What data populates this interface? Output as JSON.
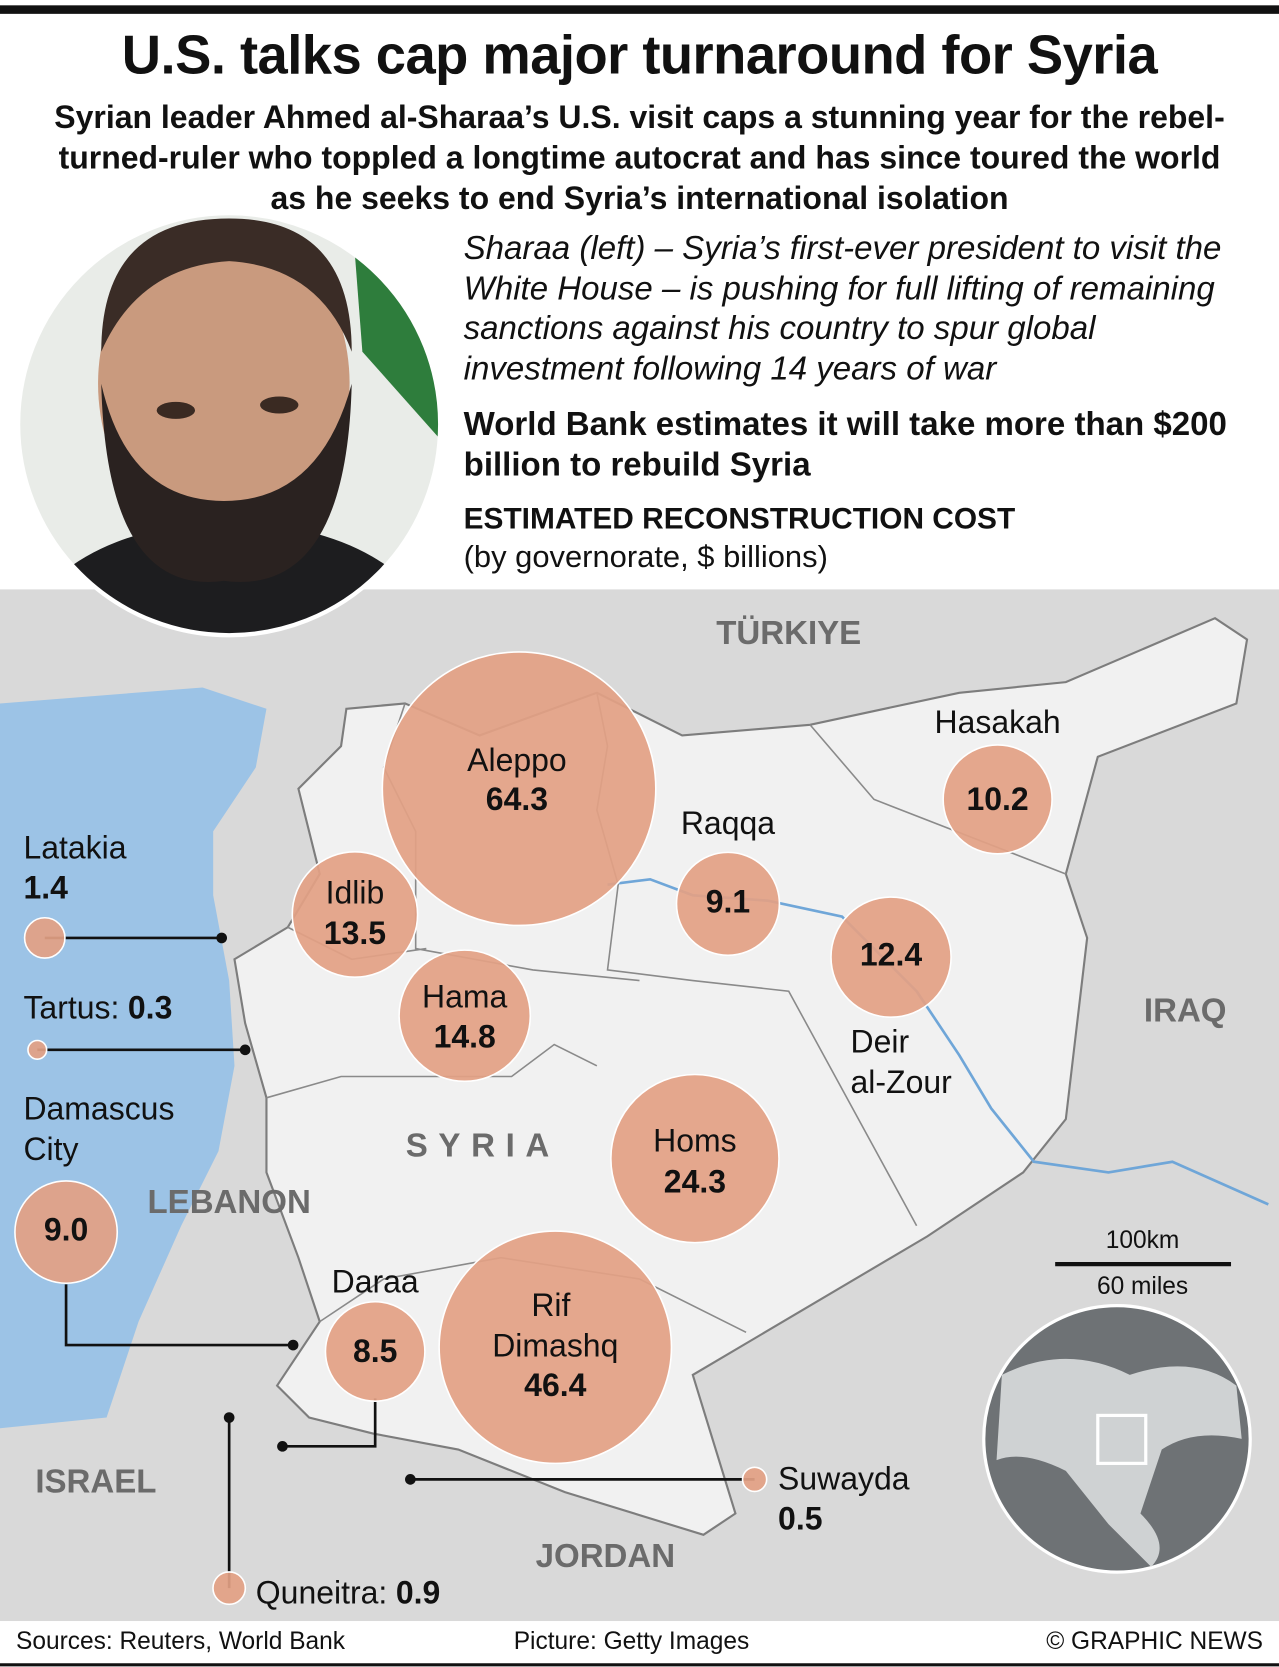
{
  "header": {
    "title": "U.S. talks cap major turnaround for Syria",
    "subtitle": "Syrian leader Ahmed al-Sharaa’s U.S. visit caps a stunning year for the rebel-turned-ruler who toppled a longtime autocrat and has since toured the world as he seeks to end Syria’s international isolation",
    "caption": "Sharaa (left) – Syria’s first-ever president to visit the White House – is pushing for full lifting of remaining sanctions against his country to spur global investment following 14 years of war",
    "highlight": "World Bank estimates it will take more than $200 billion to rebuild Syria",
    "chart_title": "ESTIMATED RECONSTRUCTION COST",
    "chart_subtitle": "(by governorate, $ billions)"
  },
  "map": {
    "type": "proportional-symbol",
    "color": "#e3a184",
    "regions": [
      "Aleppo",
      "Idlib",
      "Hama",
      "Raqqa",
      "Hasakah",
      "Deir al-Zour",
      "Homs",
      "Rif Dimashq",
      "Daraa",
      "Damascus City",
      "Latakia",
      "Tartus:",
      "Quneitra:",
      "Suwayda"
    ],
    "values": [
      64.3,
      13.5,
      14.8,
      9.1,
      10.2,
      12.4,
      24.3,
      46.4,
      8.5,
      9,
      1.4,
      0.3,
      0.9,
      0.5
    ],
    "value_labels": [
      "64.3",
      "13.5",
      "14.8",
      "9.1",
      "10.2",
      "12.4",
      "24.3",
      "46.4",
      "8.5",
      "9.0",
      "1.4",
      "0.3",
      "0.9",
      "0.5"
    ],
    "countries": [
      "TÜRKIYE",
      "IRAQ",
      "SYRIA",
      "LEBANON",
      "ISRAEL",
      "JORDAN"
    ],
    "scale": [
      "100km",
      "60 miles"
    ]
  },
  "footer": {
    "sources": "Sources: Reuters, World Bank",
    "picture": "Picture: Getty Images",
    "credit": "© GRAPHIC NEWS"
  }
}
